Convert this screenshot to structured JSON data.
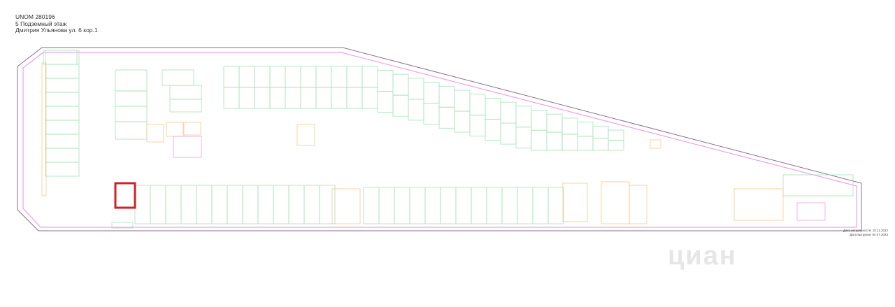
{
  "header": {
    "unom": "UNOM 280196",
    "floor": "5 Подземный этаж",
    "address": "Дмитрия Ульянова ул. 6 кор.1"
  },
  "footer": {
    "actual_date": "Дата актуальности: 15.11.2022",
    "export_date": "Дата выгрузки: 04.07.2023"
  },
  "watermark": "циан",
  "colors": {
    "outline": "#8a6f8a",
    "inner_wall": "#f0a0e0",
    "room_wall": "#a8e0b8",
    "structure": "#f5c890",
    "highlight": "#d0202a",
    "labels": "#c03040"
  }
}
